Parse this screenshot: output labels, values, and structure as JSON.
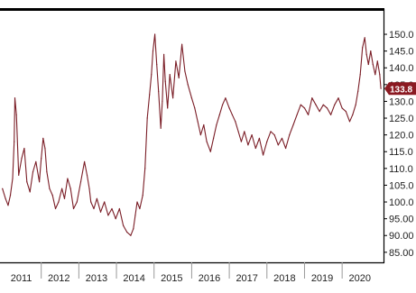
{
  "colors": {
    "series": "#7a1d26",
    "badge": "#8b1a22",
    "axis": "#000000",
    "background": "#ffffff"
  },
  "chart_data": {
    "type": "line",
    "title": "",
    "xlabel": "",
    "ylabel": "",
    "grid": false,
    "legend": "none",
    "y_axis_side": "right",
    "xlim": [
      2011.0,
      2021.1
    ],
    "ylim": [
      82,
      157
    ],
    "x_ticks": [
      "2011",
      "2012",
      "2013",
      "2014",
      "2015",
      "2016",
      "2017",
      "2018",
      "2019",
      "2020"
    ],
    "y_ticks": [
      "150.0",
      "145.0",
      "140.0",
      "135.0",
      "130.0",
      "125.0",
      "120.0",
      "115.0",
      "110.0",
      "105.0",
      "100.0",
      "95.00",
      "90.00",
      "85.00"
    ],
    "y_tick_values": [
      150,
      145,
      140,
      135,
      130,
      125,
      120,
      115,
      110,
      105,
      100,
      95,
      90,
      85
    ],
    "last_value_label": "133.8",
    "last_value": 133.8,
    "series": [
      {
        "x": [
          2010.97,
          2011.05,
          2011.12,
          2011.18,
          2011.24,
          2011.28,
          2011.3,
          2011.34,
          2011.4,
          2011.48,
          2011.55,
          2011.62,
          2011.7,
          2011.78,
          2011.86,
          2011.95,
          2012.0,
          2012.05,
          2012.1,
          2012.15,
          2012.22,
          2012.3,
          2012.38,
          2012.46,
          2012.55,
          2012.62,
          2012.7,
          2012.78,
          2012.86,
          2012.95,
          2013.05,
          2013.15,
          2013.22,
          2013.28,
          2013.32,
          2013.4,
          2013.48,
          2013.58,
          2013.68,
          2013.78,
          2013.88,
          2013.98,
          2014.08,
          2014.18,
          2014.28,
          2014.38,
          2014.45,
          2014.5,
          2014.55,
          2014.62,
          2014.7,
          2014.76,
          2014.82,
          2014.88,
          2014.93,
          2014.97,
          2015.02,
          2015.07,
          2015.12,
          2015.18,
          2015.22,
          2015.26,
          2015.3,
          2015.36,
          2015.42,
          2015.5,
          2015.58,
          2015.66,
          2015.74,
          2015.82,
          2015.9,
          2016.0,
          2016.08,
          2016.16,
          2016.24,
          2016.32,
          2016.4,
          2016.5,
          2016.58,
          2016.66,
          2016.74,
          2016.82,
          2016.9,
          2017.0,
          2017.08,
          2017.16,
          2017.24,
          2017.32,
          2017.4,
          2017.5,
          2017.6,
          2017.7,
          2017.8,
          2017.9,
          2018.0,
          2018.1,
          2018.2,
          2018.3,
          2018.4,
          2018.5,
          2018.6,
          2018.7,
          2018.8,
          2018.9,
          2019.0,
          2019.1,
          2019.2,
          2019.3,
          2019.4,
          2019.5,
          2019.6,
          2019.7,
          2019.8,
          2019.9,
          2020.0,
          2020.1,
          2020.2,
          2020.28,
          2020.36,
          2020.42,
          2020.48,
          2020.54,
          2020.6,
          2020.65,
          2020.7,
          2020.76,
          2020.82,
          2020.88,
          2020.94,
          2021.0,
          2021.03
        ],
        "values": [
          104,
          101,
          99,
          102,
          107,
          118,
          131,
          126,
          108,
          113,
          116,
          106,
          103,
          109,
          112,
          106,
          113,
          119,
          116,
          109,
          104,
          102,
          98,
          100,
          104,
          101,
          107,
          104,
          98,
          100,
          106,
          112,
          108,
          104,
          100,
          98,
          101,
          97,
          100,
          96,
          98,
          95,
          98,
          93,
          91,
          90,
          92,
          96,
          100,
          98,
          102,
          110,
          125,
          132,
          138,
          145,
          150,
          141,
          133,
          122,
          130,
          144,
          136,
          128,
          138,
          131,
          142,
          137,
          147,
          139,
          135,
          131,
          128,
          124,
          120,
          123,
          118,
          115,
          119,
          123,
          126,
          129,
          131,
          128,
          126,
          124,
          121,
          118,
          121,
          117,
          120,
          116,
          119,
          114,
          118,
          121,
          120,
          117,
          119,
          116,
          120,
          123,
          126,
          129,
          128,
          126,
          131,
          129,
          127,
          129,
          128,
          126,
          129,
          131,
          128,
          127,
          124,
          126,
          129,
          133,
          138,
          146,
          149,
          144,
          141,
          145,
          141,
          138,
          142,
          138,
          133.8
        ]
      }
    ]
  }
}
